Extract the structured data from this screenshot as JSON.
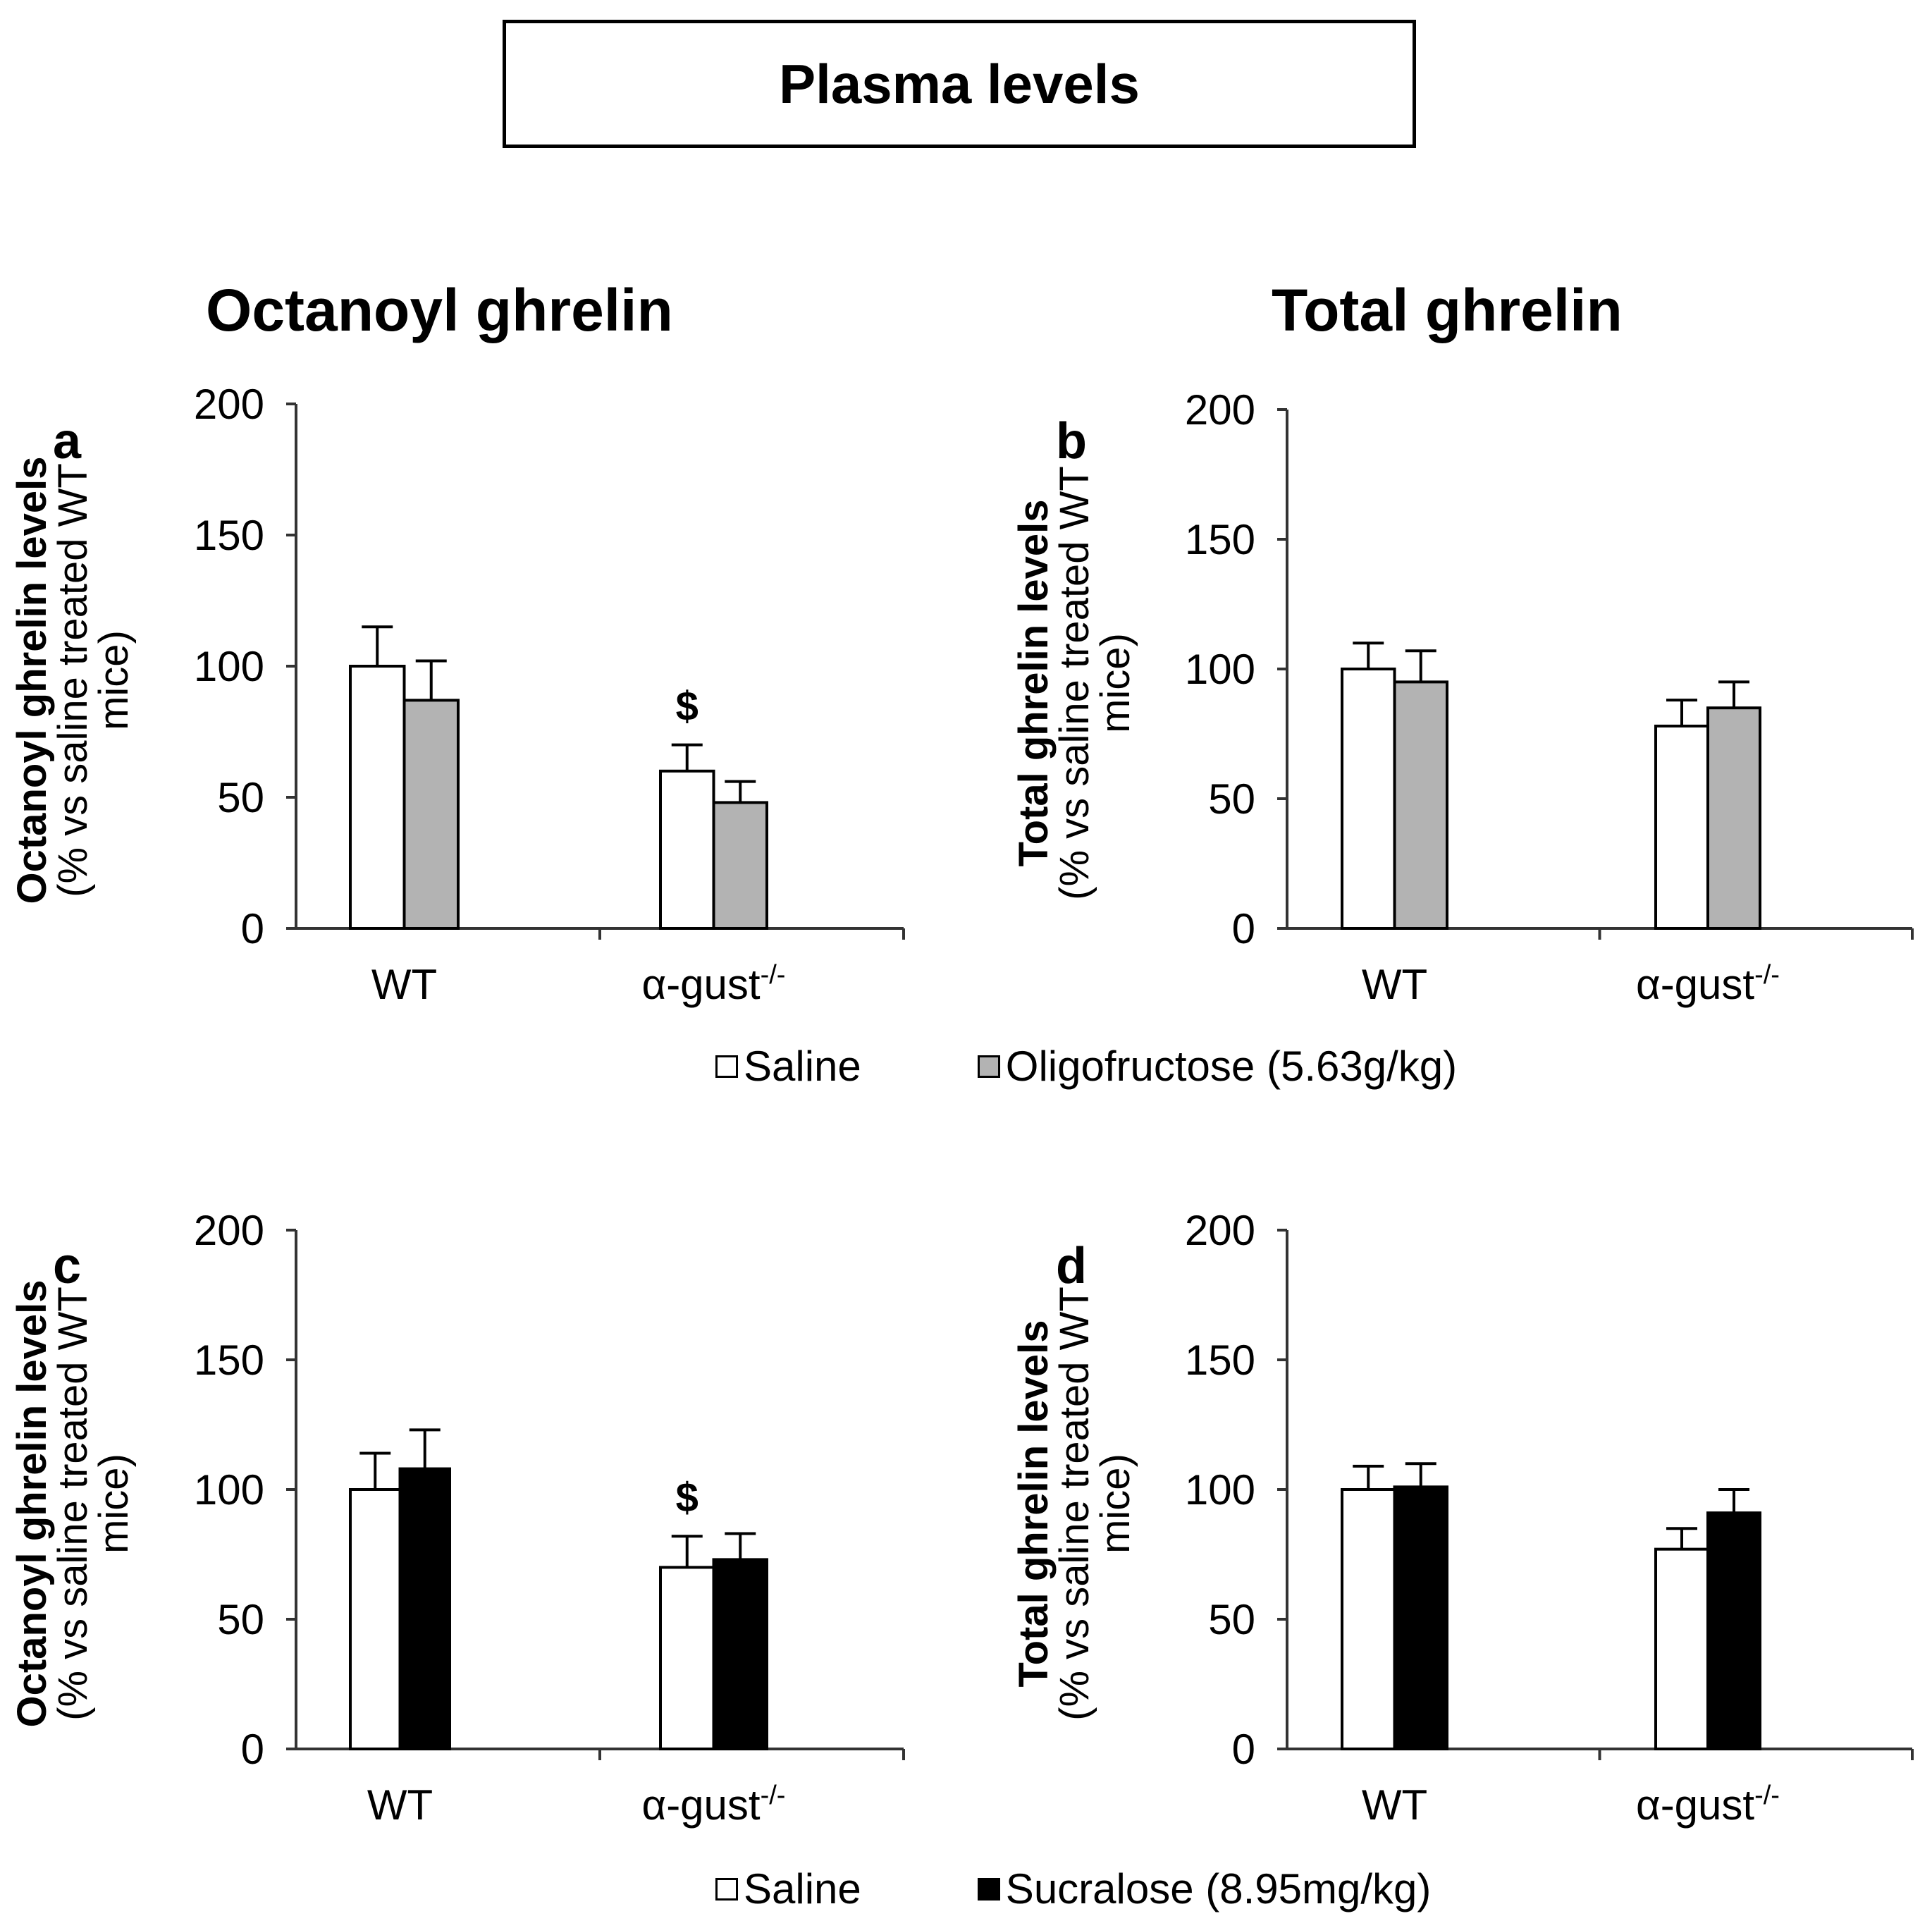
{
  "figure_title": "Plasma levels",
  "column_titles": {
    "left": "Octanoyl ghrelin",
    "right": "Total ghrelin"
  },
  "legends": {
    "top": {
      "items": [
        {
          "label": "Saline",
          "color": "#ffffff"
        },
        {
          "label": "Oligofructose (5.63g/kg)",
          "color": "#b3b3b3"
        }
      ]
    },
    "bottom": {
      "items": [
        {
          "label": "Saline",
          "color": "#ffffff"
        },
        {
          "label": "Sucralose (8.95mg/kg)",
          "color": "#000000"
        }
      ]
    }
  },
  "chart_data": [
    {
      "panel": "a",
      "type": "bar",
      "title": "Octanoyl ghrelin",
      "ylabel_bold": "Octanoyl ghrelin levels",
      "ylabel_normal": "(% vs saline treated WT mice)",
      "ylabel_lines": [
        "(% vs saline treated WT",
        "mice)"
      ],
      "ylim": [
        0,
        200
      ],
      "yticks": [
        0,
        50,
        100,
        150,
        200
      ],
      "categories": [
        "WT",
        "α-gust-/-"
      ],
      "category_display": [
        {
          "base": "WT",
          "sup": ""
        },
        {
          "base": "α-gust",
          "sup": "-/-"
        }
      ],
      "series": [
        {
          "name": "Saline",
          "color": "#ffffff",
          "values": [
            100,
            60
          ],
          "errors": [
            15,
            10
          ]
        },
        {
          "name": "Oligofructose (5.63g/kg)",
          "color": "#b3b3b3",
          "values": [
            87,
            48
          ],
          "errors": [
            15,
            8
          ]
        }
      ],
      "annotations": [
        {
          "text": "$",
          "category": 1,
          "series": 0
        }
      ]
    },
    {
      "panel": "b",
      "type": "bar",
      "title": "Total ghrelin",
      "ylabel_bold": "Total ghrelin levels",
      "ylabel_normal": "(% vs saline treated WT mice)",
      "ylabel_lines": [
        "(% vs saline treated WT",
        "mice)"
      ],
      "ylim": [
        0,
        200
      ],
      "yticks": [
        0,
        50,
        100,
        150,
        200
      ],
      "categories": [
        "WT",
        "α-gust-/-"
      ],
      "category_display": [
        {
          "base": "WT",
          "sup": ""
        },
        {
          "base": "α-gust",
          "sup": "-/-"
        }
      ],
      "series": [
        {
          "name": "Saline",
          "color": "#ffffff",
          "values": [
            100,
            78
          ],
          "errors": [
            10,
            10
          ]
        },
        {
          "name": "Oligofructose (5.63g/kg)",
          "color": "#b3b3b3",
          "values": [
            95,
            85
          ],
          "errors": [
            12,
            10
          ]
        }
      ],
      "annotations": []
    },
    {
      "panel": "c",
      "type": "bar",
      "title": "Octanoyl ghrelin",
      "ylabel_bold": "Octanoyl ghrelin levels",
      "ylabel_normal": "(% vs saline treated WT mice)",
      "ylabel_lines": [
        "(% vs saline treated WT",
        "mice)"
      ],
      "ylim": [
        0,
        200
      ],
      "yticks": [
        0,
        50,
        100,
        150,
        200
      ],
      "categories": [
        "WT",
        "α-gust-/-"
      ],
      "category_display": [
        {
          "base": "WT",
          "sup": ""
        },
        {
          "base": "α-gust",
          "sup": "-/-"
        }
      ],
      "series": [
        {
          "name": "Saline",
          "color": "#ffffff",
          "values": [
            100,
            70
          ],
          "errors": [
            14,
            12
          ]
        },
        {
          "name": "Sucralose (8.95mg/kg)",
          "color": "#000000",
          "values": [
            108,
            73
          ],
          "errors": [
            15,
            10
          ]
        }
      ],
      "annotations": [
        {
          "text": "$",
          "category": 1,
          "series": 0
        }
      ]
    },
    {
      "panel": "d",
      "type": "bar",
      "title": "Total ghrelin",
      "ylabel_bold": "Total ghrelin levels",
      "ylabel_normal": "(% vs saline treated WT mice)",
      "ylabel_lines": [
        "(% vs saline treated WT",
        "mice)"
      ],
      "ylim": [
        0,
        200
      ],
      "yticks": [
        0,
        50,
        100,
        150,
        200
      ],
      "categories": [
        "WT",
        "α-gust-/-"
      ],
      "category_display": [
        {
          "base": "WT",
          "sup": ""
        },
        {
          "base": "α-gust",
          "sup": "-/-"
        }
      ],
      "series": [
        {
          "name": "Saline",
          "color": "#ffffff",
          "values": [
            100,
            77
          ],
          "errors": [
            9,
            8
          ]
        },
        {
          "name": "Sucralose (8.95mg/kg)",
          "color": "#000000",
          "values": [
            101,
            91
          ],
          "errors": [
            9,
            9
          ]
        }
      ],
      "annotations": []
    }
  ]
}
